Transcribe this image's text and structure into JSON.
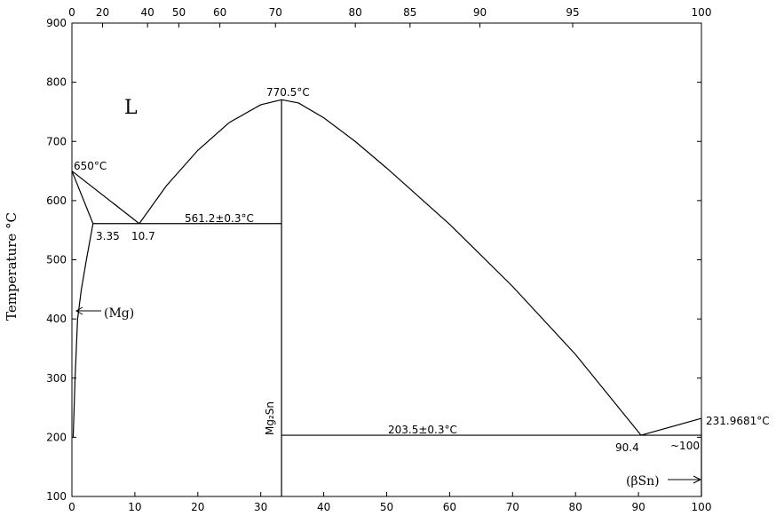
{
  "chart_data": {
    "type": "phase_diagram",
    "ylabel": "Temperature °C",
    "xlim": [
      0,
      100
    ],
    "xticks": [
      0,
      10,
      20,
      30,
      40,
      50,
      60,
      70,
      80,
      90,
      100
    ],
    "ylim": [
      100,
      900
    ],
    "yticks": [
      100,
      200,
      300,
      400,
      500,
      600,
      700,
      800,
      900
    ],
    "x2ticks": [
      0,
      20,
      40,
      50,
      60,
      70,
      80,
      85,
      90,
      95,
      100
    ],
    "x2tick_positions": [
      0,
      4.87,
      12.01,
      16.99,
      23.5,
      32.33,
      45.02,
      53.71,
      64.81,
      79.55,
      100
    ],
    "color": "#000000",
    "lines": [
      {
        "x": [
          0,
          10.7
        ],
        "y": [
          650,
          561.2
        ]
      },
      {
        "x": [
          10.7,
          15,
          20,
          25,
          30,
          33.3
        ],
        "y": [
          561.2,
          625,
          685,
          732,
          762,
          770.5
        ]
      },
      {
        "x": [
          33.3,
          36,
          40,
          45,
          50,
          60,
          70,
          80,
          90.4
        ],
        "y": [
          770.5,
          765,
          740,
          700,
          655,
          560,
          455,
          340,
          203.5
        ]
      },
      {
        "x": [
          90.4,
          100
        ],
        "y": [
          203.5,
          231.9681
        ]
      },
      {
        "x": [
          0,
          3.35
        ],
        "y": [
          650,
          561.2
        ]
      },
      {
        "x": [
          3.35,
          2.3,
          1.5,
          0.9,
          0.5,
          0.2
        ],
        "y": [
          561.2,
          500,
          450,
          400,
          300,
          200
        ]
      },
      {
        "x": [
          3.35,
          33.3
        ],
        "y": [
          561.2,
          561.2
        ]
      },
      {
        "x": [
          33.3,
          33.3
        ],
        "y": [
          770.5,
          100
        ]
      },
      {
        "x": [
          33.3,
          100
        ],
        "y": [
          203.5,
          203.5
        ]
      },
      {
        "x": [
          100,
          100
        ],
        "y": [
          100,
          231.9681
        ]
      }
    ],
    "annotations": [
      "L",
      "650°C",
      "770.5°C",
      "561.2±0.3°C",
      "3.35",
      "10.7",
      "(Mg)",
      "Mg₂Sn",
      "203.5±0.3°C",
      "90.4",
      "~100",
      "231.9681°C",
      "(βSn)"
    ]
  }
}
